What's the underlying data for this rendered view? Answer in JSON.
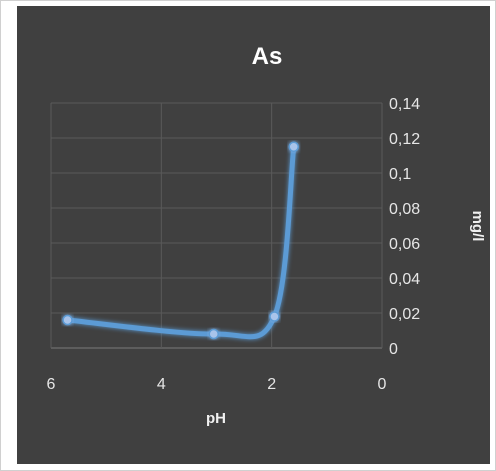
{
  "chart_data": {
    "type": "scatter",
    "title": "As",
    "xlabel": "pH",
    "ylabel": "mg/l",
    "xlim": [
      0,
      6
    ],
    "ylim": [
      0,
      0.14
    ],
    "x_reversed": true,
    "y_axis_side": "right",
    "x_ticks": [
      "6",
      "4",
      "2",
      "0"
    ],
    "y_ticks": [
      "0",
      "0,02",
      "0,04",
      "0,06",
      "0,08",
      "0,1",
      "0,12",
      "0,14"
    ],
    "grid": true,
    "smooth_line": true,
    "series_color": "#5b9bd5",
    "series": [
      {
        "x": [
          5.7,
          3.05,
          1.95,
          1.6
        ],
        "y": [
          0.016,
          0.008,
          0.018,
          0.115
        ]
      }
    ]
  }
}
